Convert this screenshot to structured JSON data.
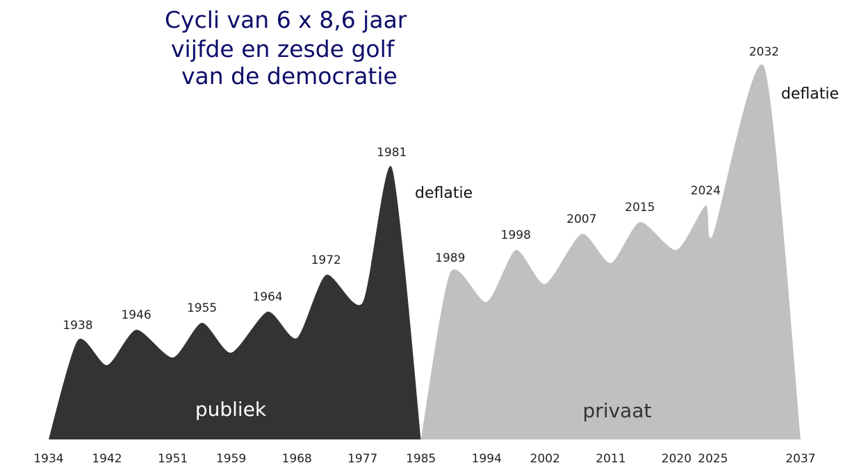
{
  "title_lines": [
    "Cycli van 6 x 8,6 jaar",
    "vijfde en zesde golf",
    "van de democratie"
  ],
  "colors": {
    "publiek": "#333333",
    "privaat": "#c0c0c0",
    "title": "#0c0c6a",
    "axis_text": "#222222"
  },
  "chart_data": {
    "type": "area",
    "xlim": [
      1934,
      2037
    ],
    "x_ticks": [
      "1934",
      "1942",
      "1951",
      "1959",
      "1968",
      "1977",
      "1985",
      "1994",
      "2002",
      "2011",
      "2020",
      "2025",
      "2037"
    ],
    "series": [
      {
        "name": "publiek",
        "color": "#333333",
        "points": [
          {
            "x": 1934,
            "y": 0
          },
          {
            "x": 1938,
            "y": 143,
            "label": "1938"
          },
          {
            "x": 1942,
            "y": 107
          },
          {
            "x": 1946,
            "y": 158,
            "label": "1946"
          },
          {
            "x": 1951,
            "y": 118
          },
          {
            "x": 1955,
            "y": 168,
            "label": "1955"
          },
          {
            "x": 1959,
            "y": 125
          },
          {
            "x": 1964,
            "y": 184,
            "label": "1964"
          },
          {
            "x": 1968,
            "y": 146
          },
          {
            "x": 1972,
            "y": 237,
            "label": "1972"
          },
          {
            "x": 1977,
            "y": 197
          },
          {
            "x": 1981,
            "y": 392,
            "label": "1981"
          },
          {
            "x": 1985,
            "y": 0
          }
        ],
        "annotation": "deflatie"
      },
      {
        "name": "privaat",
        "color": "#c0c0c0",
        "points": [
          {
            "x": 1985,
            "y": 0
          },
          {
            "x": 1989,
            "y": 240,
            "label": "1989"
          },
          {
            "x": 1994,
            "y": 198
          },
          {
            "x": 1998,
            "y": 273,
            "label": "1998"
          },
          {
            "x": 2002,
            "y": 224
          },
          {
            "x": 2007,
            "y": 296,
            "label": "2007"
          },
          {
            "x": 2011,
            "y": 254
          },
          {
            "x": 2015,
            "y": 313,
            "label": "2015"
          },
          {
            "x": 2020,
            "y": 273
          },
          {
            "x": 2024,
            "y": 337,
            "label": "2024"
          },
          {
            "x": 2025,
            "y": 295
          },
          {
            "x": 2032,
            "y": 537,
            "label": "2032"
          },
          {
            "x": 2037,
            "y": 0
          }
        ],
        "annotation": "deflatie"
      }
    ]
  }
}
